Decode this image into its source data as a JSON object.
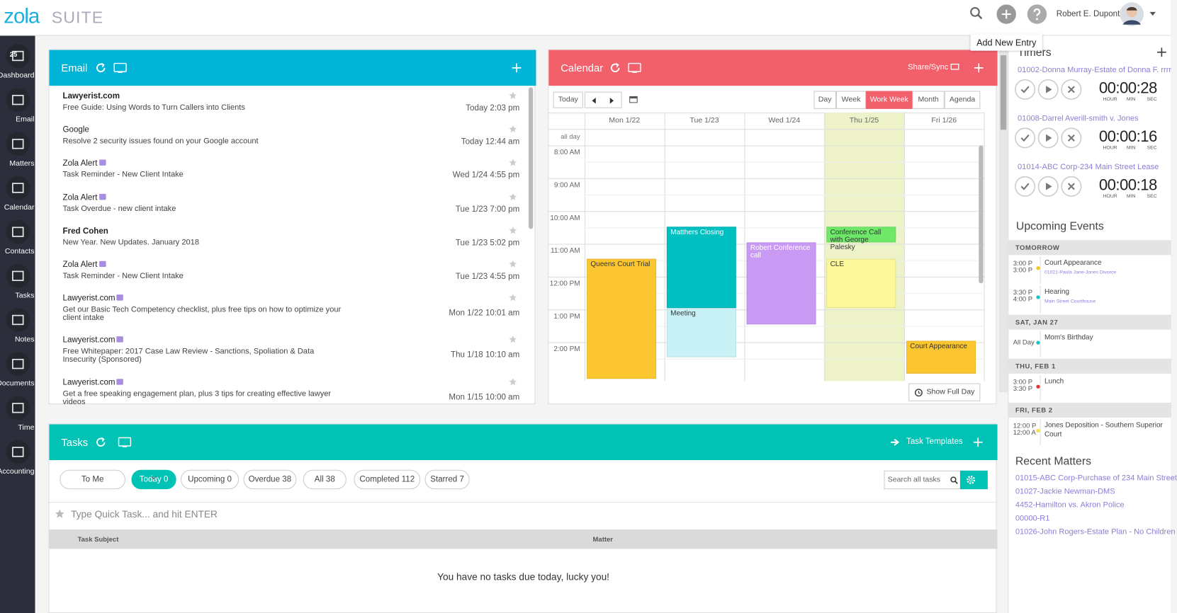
{
  "header": {
    "logo_a": "zola",
    "logo_b": "SUITE",
    "user": "Robert E. Dupont",
    "tooltip": "Add New Entry"
  },
  "sidebar": {
    "items": [
      "Dashboard",
      "Email",
      "Matters",
      "Calendar",
      "Contacts",
      "Tasks",
      "Notes",
      "Documents",
      "Time",
      "Accounting"
    ],
    "calendar_day": "25"
  },
  "email": {
    "title": "Email",
    "items": [
      {
        "from": "Lawyerist.com",
        "subject": "Free Guide: Using Words to Turn Callers into Clients",
        "date": "Today 2:03 pm",
        "unread": true
      },
      {
        "from": "Google",
        "subject": "Resolve 2 security issues found on your Google account",
        "date": "Today 12:44 am",
        "unread": false
      },
      {
        "from": "Zola Alert",
        "subject": "Task Reminder - New Client Intake",
        "date": "Wed 1/24 4:55 pm",
        "unread": false
      },
      {
        "from": "Zola Alert",
        "subject": "Task Overdue - new client intake",
        "date": "Tue 1/23 7:00 pm",
        "unread": false
      },
      {
        "from": "Fred Cohen",
        "subject": "New Year. New Updates. January 2018",
        "date": "Tue 1/23 5:02 pm",
        "unread": true
      },
      {
        "from": "Zola Alert",
        "subject": "Task Reminder - New Client Intake",
        "date": "Tue 1/23 4:55 pm",
        "unread": false
      },
      {
        "from": "Lawyerist.com",
        "subject": "Get our Basic Tech Competency checklist, plus free tips on how to optimize your client intake",
        "date": "Mon 1/22 10:01 am",
        "unread": false
      },
      {
        "from": "Lawyerist.com",
        "subject": "Free Whitepaper: 2017 Case Law Review - Sanctions, Spoliation & Data Insecurity (Sponsored)",
        "date": "Thu 1/18 10:10 am",
        "unread": false
      },
      {
        "from": "Lawyerist.com",
        "subject": "Get a free speaking engagement plan, plus 3 tips for creating effective lawyer videos",
        "date": "Mon 1/15 10:00 am",
        "unread": false
      }
    ]
  },
  "calendar": {
    "title": "Calendar",
    "share": "Share/Sync",
    "today": "Today",
    "views": [
      "Day",
      "Week",
      "Work Week",
      "Month",
      "Agenda"
    ],
    "active_view": 2,
    "days": [
      "Mon 1/22",
      "Tue 1/23",
      "Wed 1/24",
      "Thu 1/25",
      "Fri 1/26"
    ],
    "highlight_day": 3,
    "all_day": "all day",
    "times": [
      "8:00 AM",
      "9:00 AM",
      "10:00 AM",
      "11:00 AM",
      "12:00 PM",
      "1:00 PM",
      "2:00 PM"
    ],
    "events": [
      {
        "title": "Queens Court Trial",
        "color": "#fcc630"
      },
      {
        "title": "Matthers Closing",
        "color": "#00bfc1"
      },
      {
        "title": "Meeting",
        "color": "#c8f2f6"
      },
      {
        "title": "Robert Conference call",
        "color": "#c89af4"
      },
      {
        "title": "Conference Call with George Palesky",
        "color": "#6fe86a"
      },
      {
        "title": "CLE",
        "color": "#fbf79b"
      },
      {
        "title": "Court Appearance",
        "color": "#fcc630"
      }
    ],
    "show_full_day": "Show Full Day"
  },
  "timers": {
    "title": "Timers",
    "units": [
      "HOUR",
      "MIN",
      "SEC"
    ],
    "items": [
      {
        "matter": "01002-Donna Murray-Estate of Donna F. rrrr",
        "time": "00:00:28"
      },
      {
        "matter": "01008-Darrel Averill-smith v. Jones",
        "time": "00:00:16"
      },
      {
        "matter": "01014-ABC Corp-234 Main Street Lease",
        "time": "00:00:18"
      }
    ]
  },
  "upcoming": {
    "title": "Upcoming Events",
    "groups": [
      {
        "label": "TOMORROW",
        "events": [
          {
            "start": "3:00 P",
            "end": "3:00 P",
            "title": "Court Appearance",
            "sub": "01021-Paula Jane-Jones Divorce",
            "color": "#f5c518"
          },
          {
            "start": "3:30 P",
            "end": "4:00 P",
            "title": "Hearing",
            "sub": "Main Street Courthouse",
            "color": "#1bc0c0"
          }
        ]
      },
      {
        "label": "SAT, JAN 27",
        "events": [
          {
            "start": "All Day",
            "title": "Mom's Birthday",
            "color": "#1bc0c0"
          }
        ]
      },
      {
        "label": "THU, FEB 1",
        "events": [
          {
            "start": "3:00 P",
            "end": "3:30 P",
            "title": "Lunch",
            "color": "#e8303a"
          }
        ]
      },
      {
        "label": "FRI, FEB 2",
        "events": [
          {
            "start": "12:00 P",
            "end": "12:00 A",
            "title": "Jones Deposition - Southern Superior Court",
            "color": "#f5e04a"
          }
        ]
      }
    ]
  },
  "recent": {
    "title": "Recent Matters",
    "items": [
      "01015-ABC Corp-Purchase of 234 Main Street",
      "01027-Jackie Newman-DMS",
      "4452-Hamilton vs. Akron Police",
      "00000-R1",
      "01026-John Rogers-Estate Plan - No Children"
    ]
  },
  "tasks": {
    "title": "Tasks",
    "templates": "Task Templates",
    "filters": [
      "To Me",
      "Today 0",
      "Upcoming 0",
      "Overdue 38",
      "All 38",
      "Completed 112",
      "Starred 7"
    ],
    "active_filter": 1,
    "search": "Search all tasks",
    "quick": "Type Quick Task... and hit ENTER",
    "columns": [
      "Task Subject",
      "Matter"
    ],
    "empty": "You have no tasks due today, lucky you!"
  }
}
